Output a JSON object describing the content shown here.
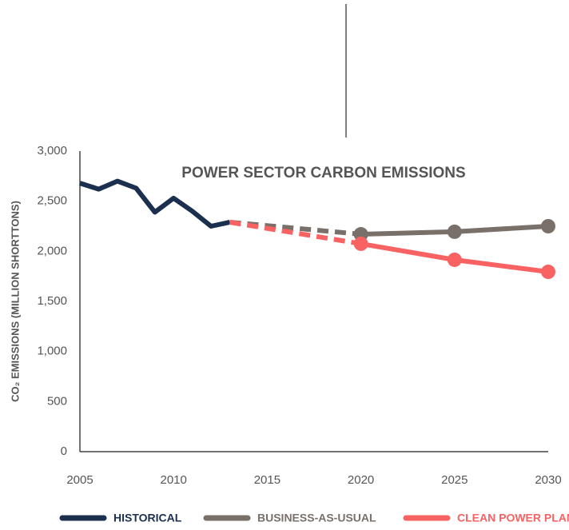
{
  "chart_data": {
    "type": "line",
    "title": "POWER SECTOR CARBON  EMISSIONS",
    "ylabel": "CO₂ EMISSIONS (MILLION SHORTTONS)",
    "xlim": [
      2005,
      2030
    ],
    "xticks": [
      2005,
      2010,
      2015,
      2020,
      2025,
      2030
    ],
    "ylim": [
      0,
      3000
    ],
    "yticks": [
      0,
      500,
      {
        "value": 1000,
        "label": "1,000"
      },
      {
        "value": 1500,
        "label": "1,500"
      },
      {
        "value": 2000,
        "label": "2,000"
      },
      {
        "value": 2500,
        "label": "2,500"
      },
      {
        "value": 3000,
        "label": "3,000"
      }
    ],
    "legend": "bottom",
    "series": [
      {
        "name": "HISTORICAL",
        "color": "#1b2f4e",
        "x": [
          2005,
          2006,
          2007,
          2008,
          2009,
          2010,
          2011,
          2012,
          2013
        ],
        "values": [
          2680,
          2620,
          2700,
          2630,
          2390,
          2530,
          2400,
          2250,
          2290
        ]
      },
      {
        "name": "BUSINESS-AS-USUAL",
        "color": "#7a706a",
        "x": [
          2013,
          2020,
          2025,
          2030
        ],
        "values": [
          2290,
          2170,
          2195,
          2250
        ]
      },
      {
        "name": "CLEAN POWER PLAN",
        "color": "#f86262",
        "x": [
          2013,
          2020,
          2025,
          2030
        ],
        "values": [
          2290,
          2075,
          1915,
          1795
        ]
      }
    ]
  }
}
